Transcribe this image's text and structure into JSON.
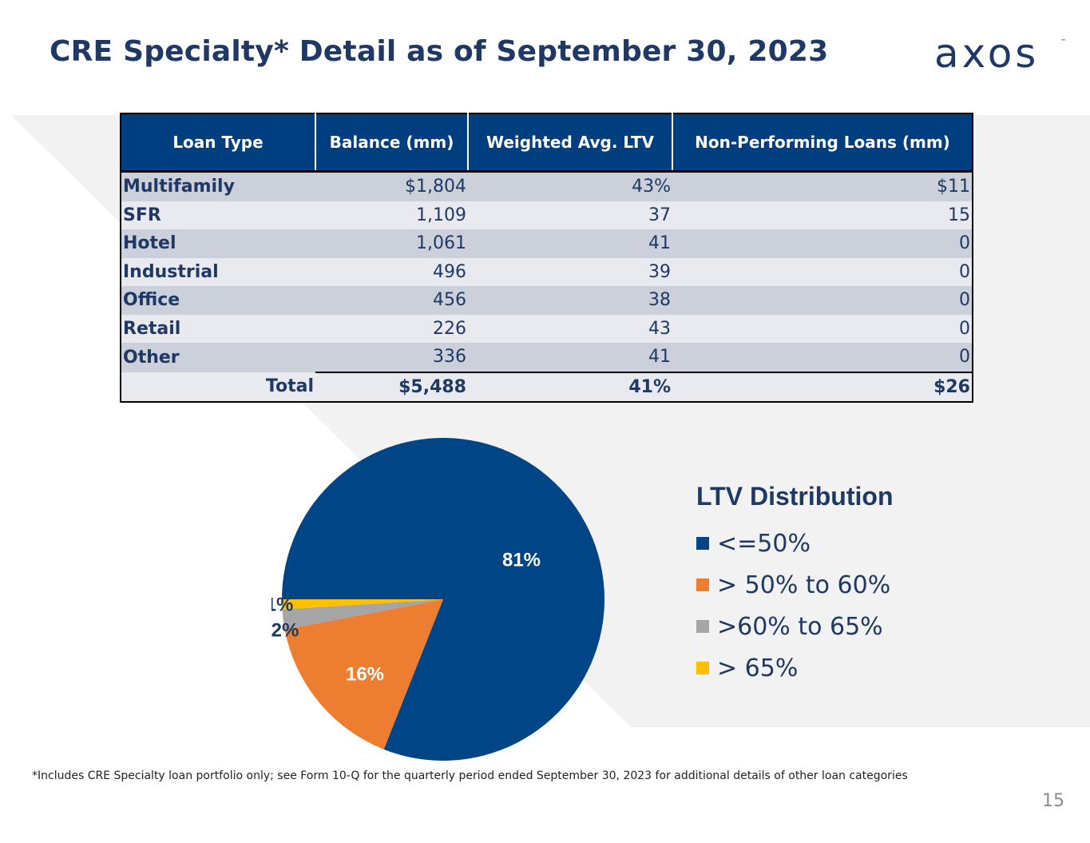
{
  "title": "CRE Specialty* Detail as of September 30, 2023",
  "logo": {
    "text": "axos",
    "tm": "™"
  },
  "table": {
    "headers": [
      "Loan Type",
      "Balance (mm)",
      "Weighted Avg. LTV",
      "Non-Performing Loans (mm)"
    ],
    "rows": [
      {
        "type": "Multifamily",
        "balance": "$1,804",
        "ltv": "43%",
        "npl": "$11"
      },
      {
        "type": "SFR",
        "balance": "1,109",
        "ltv": "37",
        "npl": "15"
      },
      {
        "type": "Hotel",
        "balance": "1,061",
        "ltv": "41",
        "npl": "0"
      },
      {
        "type": "Industrial",
        "balance": "496",
        "ltv": "39",
        "npl": "0"
      },
      {
        "type": "Office",
        "balance": "456",
        "ltv": "38",
        "npl": "0"
      },
      {
        "type": "Retail",
        "balance": "226",
        "ltv": "43",
        "npl": "0"
      },
      {
        "type": "Other",
        "balance": "336",
        "ltv": "41",
        "npl": "0"
      }
    ],
    "total": {
      "label": "Total",
      "balance": "$5,488",
      "ltv": "41%",
      "npl": "$26"
    }
  },
  "chart_data": {
    "type": "pie",
    "title": "LTV Distribution",
    "categories": [
      "<=50%",
      "> 50% to 60%",
      ">60% to 65%",
      "> 65%"
    ],
    "values": [
      81,
      16,
      2,
      1
    ],
    "labels": [
      "81%",
      "16%",
      "2%",
      "1%"
    ],
    "colors": [
      "#004586",
      "#ed7d31",
      "#a5a5a5",
      "#ffc000"
    ],
    "legend_position": "right"
  },
  "footnote": "*Includes CRE Specialty loan portfolio only; see Form 10-Q for the quarterly period ended September 30, 2023 for additional details of other loan categories",
  "page_number": "15",
  "colors": {
    "primary": "#1f3864",
    "header_bg": "#003f7f",
    "accent": "#ed7d31"
  }
}
